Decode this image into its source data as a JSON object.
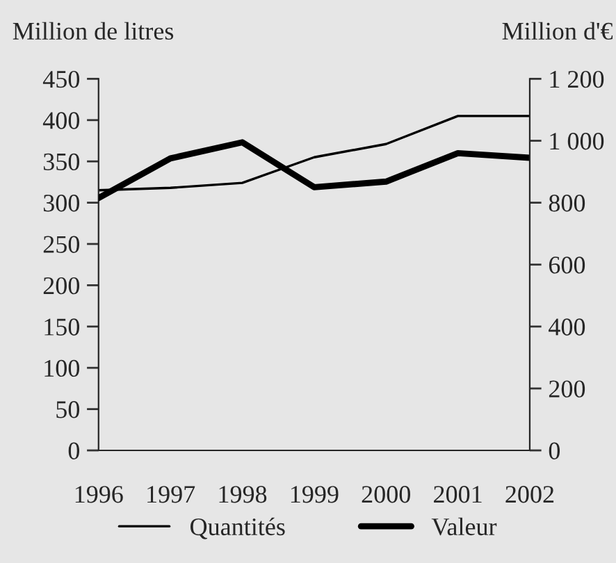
{
  "chart_data": {
    "type": "line",
    "ylabel": "Million de litres",
    "y2label": "Million d'€",
    "x": [
      1996,
      1997,
      1998,
      1999,
      2000,
      2001,
      2002
    ],
    "xlim": [
      1996,
      2002
    ],
    "xticks": [
      1996,
      1997,
      1998,
      1999,
      2000,
      2001,
      2002
    ],
    "ylim": [
      0,
      450
    ],
    "yticks": [
      0,
      50,
      100,
      150,
      200,
      250,
      300,
      350,
      400,
      450
    ],
    "y2lim": [
      0,
      1200
    ],
    "y2ticks": [
      0,
      200,
      400,
      600,
      800,
      {
        "value": 1000,
        "label": "1 000"
      },
      {
        "value": 1200,
        "label": "1 200"
      }
    ],
    "series": [
      {
        "name": "Quantités",
        "color": "#000000",
        "values": [
          315,
          318,
          324,
          355,
          371,
          405,
          405
        ]
      },
      {
        "name": "Valeur",
        "color": "#000000",
        "axis": "y2",
        "values": [
          815,
          943,
          995,
          850,
          868,
          960,
          945
        ]
      }
    ],
    "legend": "bottom",
    "grid": false,
    "marker": "none",
    "line_style": "solid"
  }
}
